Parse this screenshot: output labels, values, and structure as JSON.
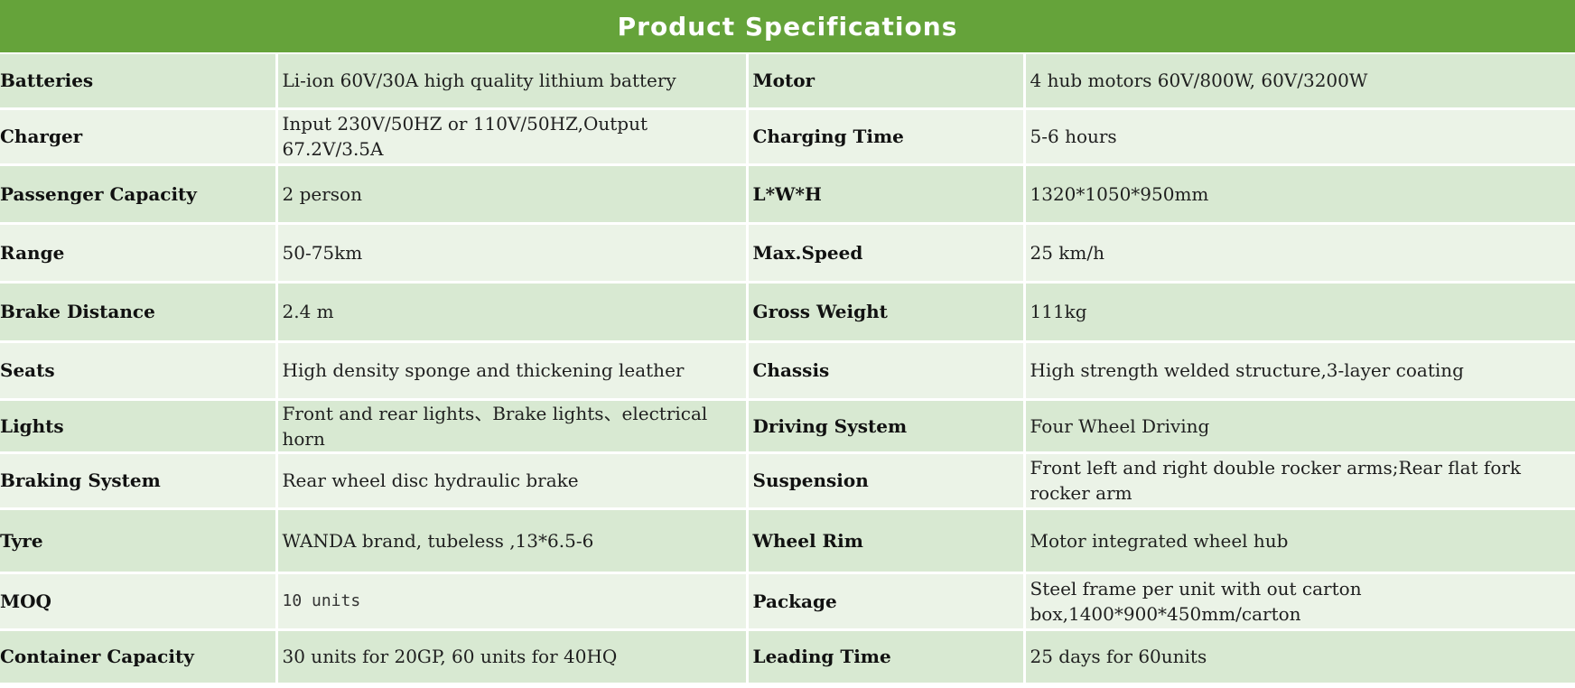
{
  "title": "Product Specifications",
  "colors": {
    "header_bg": "#65a33a",
    "row_dark": "#d8e9d2",
    "row_light": "#ebf3e7"
  },
  "rows": [
    {
      "label1": "Batteries",
      "value1": "Li-ion 60V/30A high quality lithium battery",
      "label2": "Motor",
      "value2": "4  hub motors 60V/800W, 60V/3200W"
    },
    {
      "label1": "Charger",
      "value1": "Input 230V/50HZ or 110V/50HZ,Output 67.2V/3.5A",
      "label2": "Charging Time",
      "value2": "5-6 hours"
    },
    {
      "label1": "Passenger Capacity",
      "value1": "2 person",
      "label2": "L*W*H",
      "value2": "1320*1050*950mm"
    },
    {
      "label1": "Range",
      "value1": "50-75km",
      "label2": "Max.Speed",
      "value2": "25 km/h"
    },
    {
      "label1": "Brake Distance",
      "value1": "2.4 m",
      "label2": "Gross Weight",
      "value2": "111kg"
    },
    {
      "label1": "Seats",
      "value1": "High density sponge and thickening leather",
      "label2": "Chassis",
      "value2": "High strength welded structure,3-layer coating"
    },
    {
      "label1": "Lights",
      "value1": "Front and rear lights、Brake lights、electrical horn",
      "label2": "Driving System",
      "value2": "Four Wheel Driving"
    },
    {
      "label1": "Braking System",
      "value1": "Rear wheel disc hydraulic brake",
      "label2": "Suspension",
      "value2": "Front left and right double rocker arms;Rear flat fork rocker arm"
    },
    {
      "label1": "Tyre",
      "value1": "WANDA brand, tubeless ,13*6.5-6",
      "label2": "Wheel Rim",
      "value2": "Motor integrated wheel hub"
    },
    {
      "label1": "MOQ",
      "value1": "10 units",
      "label2": "Package",
      "value2": "Steel frame per unit with out carton box,1400*900*450mm/carton"
    },
    {
      "label1": "Container Capacity",
      "value1": "30 units for 20GP, 60 units for 40HQ",
      "label2": "Leading Time",
      "value2": "25 days for 60units"
    }
  ]
}
